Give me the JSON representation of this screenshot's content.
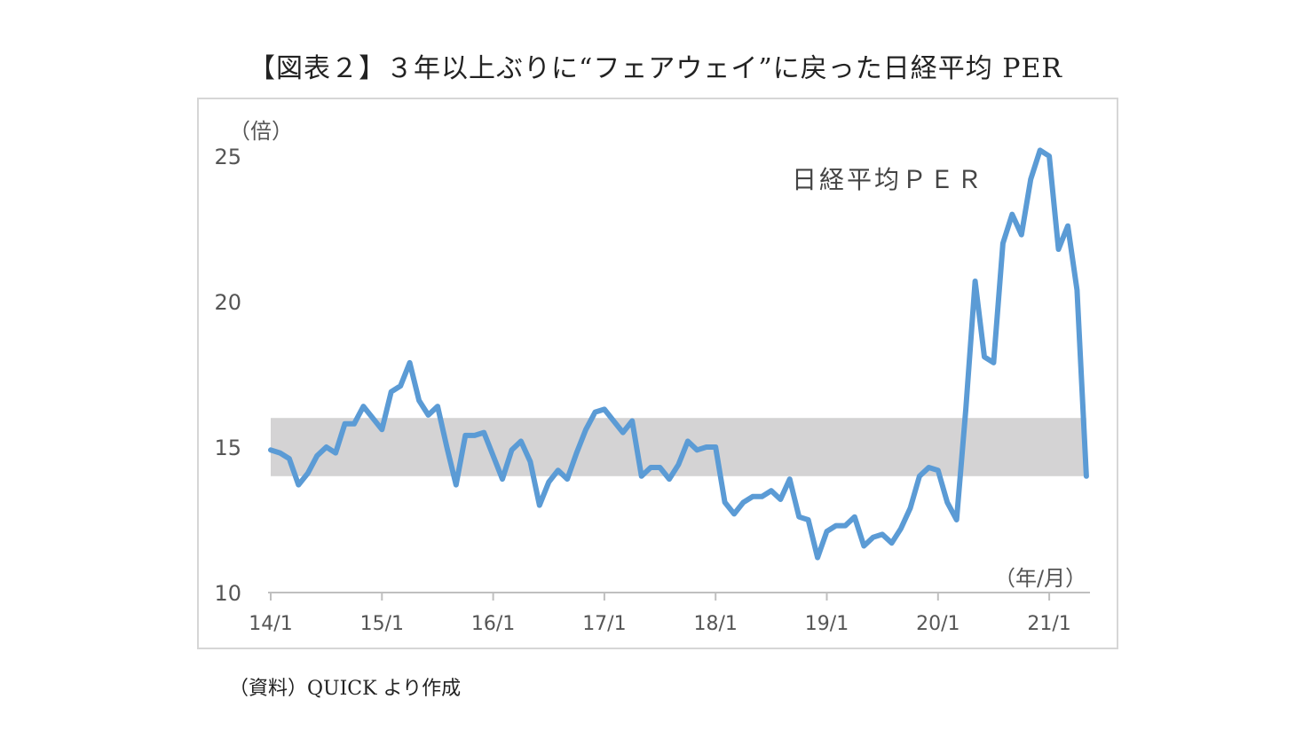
{
  "title": "【図表２】３年以上ぶりに“フェアウェイ”に戻った日経平均 PER",
  "source_note": "（資料）QUICK より作成",
  "chart_data": {
    "type": "line",
    "ylabel": "（倍）",
    "xlabel": "（年/月）",
    "ylim": [
      10,
      25
    ],
    "yticks": [
      10,
      15,
      20,
      25
    ],
    "xtick_labels": [
      "14/1",
      "15/1",
      "16/1",
      "17/1",
      "18/1",
      "19/1",
      "20/1",
      "21/1"
    ],
    "x_start": "14/1",
    "x_end": "21/5",
    "grid": false,
    "band": {
      "low": 14,
      "high": 16,
      "color": "#d4d3d4"
    },
    "series": [
      {
        "name": "日経平均ＰＥＲ",
        "color": "#5b9bd5",
        "values": [
          14.9,
          14.8,
          14.6,
          13.7,
          14.1,
          14.7,
          15.0,
          14.8,
          15.8,
          15.8,
          16.4,
          16.0,
          15.6,
          16.9,
          17.1,
          17.9,
          16.6,
          16.1,
          16.4,
          15.0,
          13.7,
          15.4,
          15.4,
          15.5,
          14.7,
          13.9,
          14.9,
          15.2,
          14.5,
          13.0,
          13.8,
          14.2,
          13.9,
          14.8,
          15.6,
          16.2,
          16.3,
          15.9,
          15.5,
          15.9,
          14.0,
          14.3,
          14.3,
          13.9,
          14.4,
          15.2,
          14.9,
          15.0,
          15.0,
          13.1,
          12.7,
          13.1,
          13.3,
          13.3,
          13.5,
          13.2,
          13.9,
          12.6,
          12.5,
          11.2,
          12.1,
          12.3,
          12.3,
          12.6,
          11.6,
          11.9,
          12.0,
          11.7,
          12.2,
          12.9,
          14.0,
          14.3,
          14.2,
          13.1,
          12.5,
          16.3,
          20.7,
          18.1,
          17.9,
          22.0,
          23.0,
          22.3,
          24.2,
          25.2,
          25.0,
          21.8,
          22.6,
          20.4,
          14.0
        ]
      }
    ]
  }
}
